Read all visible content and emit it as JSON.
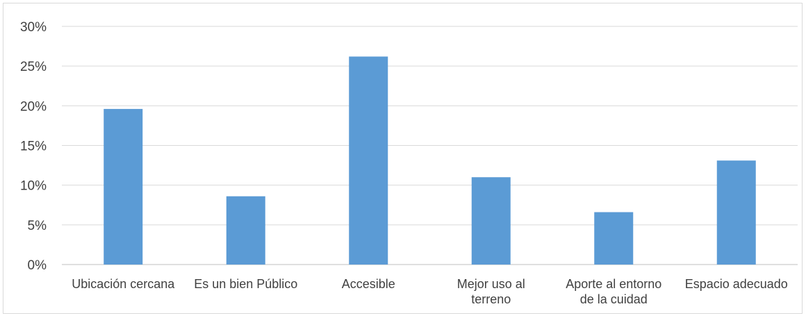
{
  "chart_data": {
    "type": "bar",
    "categories": [
      [
        "Ubicación cercana"
      ],
      [
        "Es un bien Público"
      ],
      [
        "Accesible"
      ],
      [
        "Mejor uso al",
        "terreno"
      ],
      [
        "Aporte al entorno",
        "de la cuidad"
      ],
      [
        "Espacio adecuado"
      ]
    ],
    "values": [
      19.6,
      8.6,
      26.2,
      11.0,
      6.6,
      13.1
    ],
    "ylim": [
      0,
      30
    ],
    "yticks": [
      0,
      5,
      10,
      15,
      20,
      25,
      30
    ],
    "ytick_labels": [
      "0%",
      "5%",
      "10%",
      "15%",
      "20%",
      "25%",
      "30%"
    ],
    "bar_color": "#5b9bd5",
    "grid": true,
    "legend": "none"
  }
}
